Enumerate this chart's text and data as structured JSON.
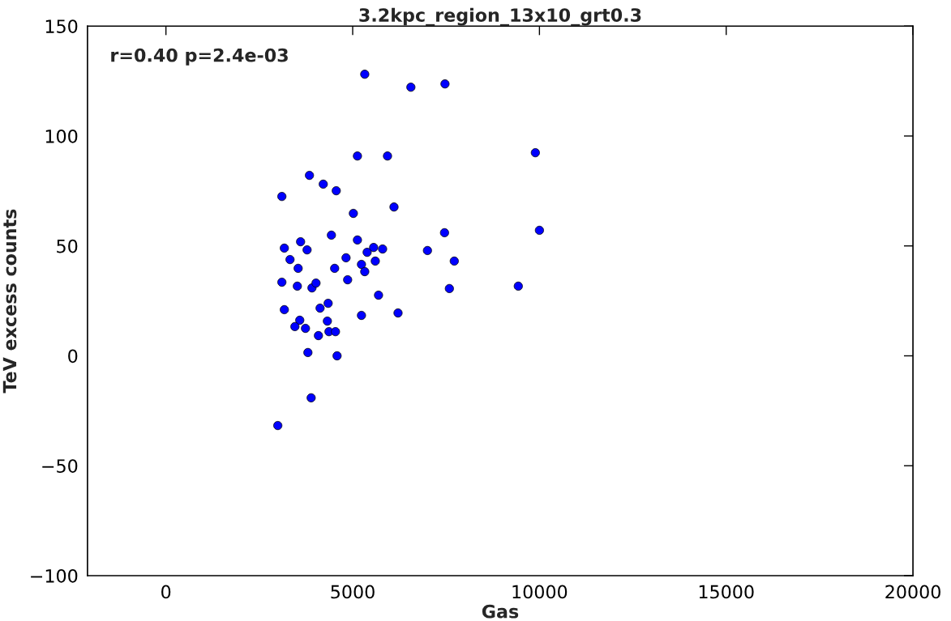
{
  "chart_data": {
    "type": "scatter",
    "title": "3.2kpc_region_13x10_grt0.3",
    "xlabel": "Gas",
    "ylabel": "TeV excess counts",
    "annotations": [
      "r=0.40 p=2.4e-03"
    ],
    "series": [
      {
        "color": "#0000ff",
        "x": [
          5323,
          6558,
          7471,
          5127,
          5932,
          9891,
          3842,
          4212,
          4560,
          3104,
          5018,
          6106,
          3170,
          3605,
          3779,
          3322,
          3540,
          4430,
          5127,
          4822,
          4517,
          4865,
          5235,
          5387,
          5561,
          5801,
          5605,
          5323,
          3104,
          3518,
          3910,
          4018,
          5692,
          3170,
          4127,
          4343,
          3583,
          3453,
          3736,
          4322,
          4365,
          4539,
          4083,
          3801,
          4582,
          5235,
          6214,
          3888,
          2995,
          7002,
          7459,
          7720,
          7589,
          9434,
          10000
        ],
        "values": [
          128.1,
          122.2,
          123.7,
          90.9,
          90.9,
          92.4,
          82.1,
          78.1,
          75.1,
          72.5,
          64.8,
          67.7,
          49.0,
          51.9,
          48.2,
          43.8,
          39.8,
          54.9,
          52.7,
          44.6,
          39.8,
          34.6,
          41.6,
          47.1,
          49.3,
          48.6,
          43.1,
          38.3,
          33.5,
          31.7,
          30.9,
          33.1,
          27.6,
          21.0,
          21.7,
          23.9,
          16.2,
          13.3,
          12.5,
          15.8,
          11.0,
          11.0,
          9.2,
          1.5,
          0.0,
          18.4,
          19.5,
          -19.1,
          -31.7,
          47.9,
          56.0,
          43.1,
          30.6,
          31.7,
          57.1
        ]
      }
    ],
    "marker": "circle",
    "xlim": [
      -2100,
      20000
    ],
    "xticks": [
      0,
      5000,
      10000,
      15000,
      20000
    ],
    "ylim": [
      -100,
      150
    ],
    "yticks": [
      {
        "value": -100,
        "label": "−100"
      },
      {
        "value": -50,
        "label": "−50"
      },
      0,
      50,
      100,
      150
    ],
    "grid": false
  }
}
